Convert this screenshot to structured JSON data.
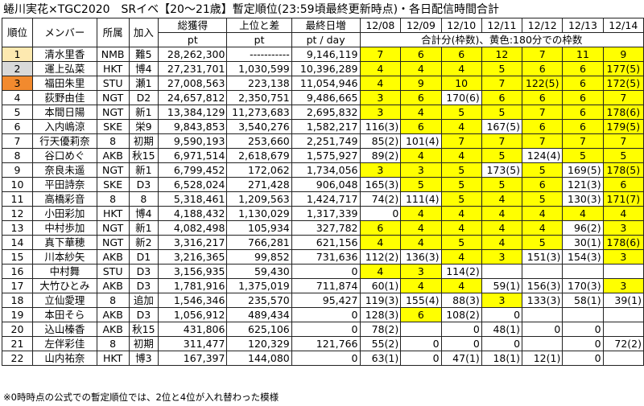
{
  "title": "蜷川実花×TGC2020　SRイベ【20～21歳】暫定順位(23:59頃最終更新時点)・各日配信時間合計",
  "note": "※0時時点の公式での暫定順位では、2位と4位が入れ替わった模様",
  "header": {
    "rank": "順位",
    "member": "メンバー",
    "group": "所属",
    "join": "加入",
    "total": "総獲得",
    "diff": "上位と差",
    "last": "最終日増",
    "total_unit": "pt",
    "diff_unit": "pt",
    "last_unit": "pt / day",
    "dates": [
      "12/08",
      "12/09",
      "12/10",
      "12/11",
      "12/12",
      "12/13",
      "12/14"
    ],
    "legend": "合計分(枠数)、黄色:180分での枠数"
  },
  "colors": {
    "highlight": "#ffff00",
    "rank1": "#fde9b0",
    "rank2": "#d9d9d9",
    "rank3": "#f28a2e"
  },
  "rows": [
    {
      "rank": "1",
      "member": "清水里香",
      "group": "NMB",
      "join": "難5",
      "total": "28,262,300",
      "diff": "-----------",
      "last": "9,146,119",
      "days": [
        {
          "v": "7",
          "y": true
        },
        {
          "v": "6",
          "y": true
        },
        {
          "v": "6",
          "y": true
        },
        {
          "v": "12",
          "y": true
        },
        {
          "v": "7",
          "y": true
        },
        {
          "v": "11",
          "y": true
        },
        {
          "v": "9",
          "y": true
        }
      ]
    },
    {
      "rank": "2",
      "member": "運上弘菜",
      "group": "HKT",
      "join": "博4",
      "total": "27,231,701",
      "diff": "1,030,599",
      "last": "10,396,289",
      "days": [
        {
          "v": "4",
          "y": true
        },
        {
          "v": "4",
          "y": true
        },
        {
          "v": "4",
          "y": true
        },
        {
          "v": "5",
          "y": true
        },
        {
          "v": "6",
          "y": true
        },
        {
          "v": "6",
          "y": true
        },
        {
          "v": "177(5)",
          "y": true
        }
      ]
    },
    {
      "rank": "3",
      "member": "福田朱里",
      "group": "STU",
      "join": "瀬1",
      "total": "27,008,563",
      "diff": "223,138",
      "last": "11,054,946",
      "days": [
        {
          "v": "4",
          "y": true
        },
        {
          "v": "9",
          "y": true
        },
        {
          "v": "10",
          "y": true
        },
        {
          "v": "7",
          "y": true
        },
        {
          "v": "122(5)",
          "y": true
        },
        {
          "v": "6",
          "y": true
        },
        {
          "v": "172(5)",
          "y": true
        }
      ]
    },
    {
      "rank": "4",
      "member": "荻野由佳",
      "group": "NGT",
      "join": "D2",
      "total": "24,657,812",
      "diff": "2,350,751",
      "last": "9,486,665",
      "days": [
        {
          "v": "3",
          "y": true
        },
        {
          "v": "6",
          "y": true
        },
        {
          "v": "170(6)",
          "y": false
        },
        {
          "v": "6",
          "y": true
        },
        {
          "v": "6",
          "y": true
        },
        {
          "v": "6",
          "y": true
        },
        {
          "v": "7",
          "y": true
        }
      ]
    },
    {
      "rank": "5",
      "member": "本間日陽",
      "group": "NGT",
      "join": "新1",
      "total": "13,384,129",
      "diff": "11,273,683",
      "last": "2,695,832",
      "days": [
        {
          "v": "3",
          "y": true
        },
        {
          "v": "4",
          "y": true
        },
        {
          "v": "5",
          "y": true
        },
        {
          "v": "5",
          "y": true
        },
        {
          "v": "7",
          "y": true
        },
        {
          "v": "6",
          "y": true
        },
        {
          "v": "178(6)",
          "y": true
        }
      ]
    },
    {
      "rank": "6",
      "member": "入内嶋涼",
      "group": "SKE",
      "join": "栄9",
      "total": "9,843,853",
      "diff": "3,540,276",
      "last": "1,582,217",
      "days": [
        {
          "v": "116(3)",
          "y": false
        },
        {
          "v": "6",
          "y": true
        },
        {
          "v": "4",
          "y": true
        },
        {
          "v": "167(5)",
          "y": false
        },
        {
          "v": "6",
          "y": true
        },
        {
          "v": "6",
          "y": true
        },
        {
          "v": "179(5)",
          "y": true
        }
      ]
    },
    {
      "rank": "7",
      "member": "行天優莉奈",
      "group": "8",
      "join": "初期",
      "total": "9,590,193",
      "diff": "253,660",
      "last": "2,251,749",
      "days": [
        {
          "v": "85(2)",
          "y": false
        },
        {
          "v": "101(4)",
          "y": false
        },
        {
          "v": "7",
          "y": true
        },
        {
          "v": "7",
          "y": true
        },
        {
          "v": "7",
          "y": true
        },
        {
          "v": "7",
          "y": true
        },
        {
          "v": "7",
          "y": true
        }
      ]
    },
    {
      "rank": "8",
      "member": "谷口めぐ",
      "group": "AKB",
      "join": "秋15",
      "total": "6,971,514",
      "diff": "2,618,679",
      "last": "1,575,927",
      "days": [
        {
          "v": "89(2)",
          "y": false
        },
        {
          "v": "4",
          "y": true
        },
        {
          "v": "4",
          "y": true
        },
        {
          "v": "5",
          "y": true
        },
        {
          "v": "124(4)",
          "y": false
        },
        {
          "v": "5",
          "y": true
        },
        {
          "v": "5",
          "y": true
        }
      ]
    },
    {
      "rank": "9",
      "member": "奈良未遥",
      "group": "NGT",
      "join": "新1",
      "total": "6,799,452",
      "diff": "172,062",
      "last": "1,734,056",
      "days": [
        {
          "v": "3",
          "y": true
        },
        {
          "v": "3",
          "y": true
        },
        {
          "v": "5",
          "y": true
        },
        {
          "v": "173(5)",
          "y": false
        },
        {
          "v": "5",
          "y": true
        },
        {
          "v": "169(5)",
          "y": false
        },
        {
          "v": "178(5)",
          "y": true
        }
      ]
    },
    {
      "rank": "10",
      "member": "平田詩奈",
      "group": "SKE",
      "join": "D3",
      "total": "6,528,024",
      "diff": "271,428",
      "last": "906,048",
      "days": [
        {
          "v": "165(3)",
          "y": false
        },
        {
          "v": "5",
          "y": true
        },
        {
          "v": "5",
          "y": true
        },
        {
          "v": "5",
          "y": true
        },
        {
          "v": "6",
          "y": true
        },
        {
          "v": "121(3)",
          "y": false
        },
        {
          "v": "6",
          "y": true
        }
      ]
    },
    {
      "rank": "11",
      "member": "高橋彩音",
      "group": "8",
      "join": "8",
      "total": "5,318,461",
      "diff": "1,209,563",
      "last": "1,424,717",
      "days": [
        {
          "v": "74(2)",
          "y": false
        },
        {
          "v": "111(4)",
          "y": false
        },
        {
          "v": "5",
          "y": true
        },
        {
          "v": "4",
          "y": true
        },
        {
          "v": "5",
          "y": true
        },
        {
          "v": "130(3)",
          "y": false
        },
        {
          "v": "171(7)",
          "y": true
        }
      ]
    },
    {
      "rank": "12",
      "member": "小田彩加",
      "group": "HKT",
      "join": "博4",
      "total": "4,188,432",
      "diff": "1,130,029",
      "last": "1,317,339",
      "days": [
        {
          "v": "0",
          "y": false
        },
        {
          "v": "4",
          "y": true
        },
        {
          "v": "4",
          "y": true
        },
        {
          "v": "4",
          "y": true
        },
        {
          "v": "4",
          "y": true
        },
        {
          "v": "4",
          "y": true
        },
        {
          "v": "4",
          "y": true
        }
      ]
    },
    {
      "rank": "13",
      "member": "中村歩加",
      "group": "NGT",
      "join": "新1",
      "total": "4,082,498",
      "diff": "105,934",
      "last": "327,782",
      "days": [
        {
          "v": "6",
          "y": true
        },
        {
          "v": "4",
          "y": true
        },
        {
          "v": "4",
          "y": true
        },
        {
          "v": "4",
          "y": true
        },
        {
          "v": "4",
          "y": true
        },
        {
          "v": "96(2)",
          "y": false
        },
        {
          "v": "3",
          "y": true
        }
      ]
    },
    {
      "rank": "14",
      "member": "真下華穂",
      "group": "NGT",
      "join": "新2",
      "total": "3,316,217",
      "diff": "766,281",
      "last": "621,156",
      "days": [
        {
          "v": "4",
          "y": true
        },
        {
          "v": "4",
          "y": true
        },
        {
          "v": "5",
          "y": true
        },
        {
          "v": "4",
          "y": true
        },
        {
          "v": "5",
          "y": true
        },
        {
          "v": "30(1)",
          "y": false
        },
        {
          "v": "178(6)",
          "y": true
        }
      ]
    },
    {
      "rank": "15",
      "member": "川本紗矢",
      "group": "AKB",
      "join": "D1",
      "total": "3,216,365",
      "diff": "99,852",
      "last": "731,636",
      "days": [
        {
          "v": "112(2)",
          "y": false
        },
        {
          "v": "136(3)",
          "y": false
        },
        {
          "v": "4",
          "y": true
        },
        {
          "v": "3",
          "y": true
        },
        {
          "v": "151(3)",
          "y": false
        },
        {
          "v": "154(3)",
          "y": false
        },
        {
          "v": "3",
          "y": true
        }
      ]
    },
    {
      "rank": "16",
      "member": "中村舞",
      "group": "STU",
      "join": "D3",
      "total": "3,156,935",
      "diff": "59,430",
      "last": "0",
      "days": [
        {
          "v": "4",
          "y": true
        },
        {
          "v": "3",
          "y": true
        },
        {
          "v": "114(2)",
          "y": false
        },
        {
          "v": "",
          "y": false
        },
        {
          "v": "",
          "y": false
        },
        {
          "v": "",
          "y": false
        },
        {
          "v": "",
          "y": false
        }
      ]
    },
    {
      "rank": "17",
      "member": "大竹ひとみ",
      "group": "AKB",
      "join": "D3",
      "total": "1,781,916",
      "diff": "1,375,019",
      "last": "711,874",
      "days": [
        {
          "v": "60(1)",
          "y": false
        },
        {
          "v": "4",
          "y": true
        },
        {
          "v": "4",
          "y": true
        },
        {
          "v": "59(1)",
          "y": false
        },
        {
          "v": "156(3)",
          "y": false
        },
        {
          "v": "170(3)",
          "y": false
        },
        {
          "v": "3",
          "y": true
        }
      ]
    },
    {
      "rank": "18",
      "member": "立仙愛理",
      "group": "8",
      "join": "追加",
      "total": "1,546,346",
      "diff": "235,570",
      "last": "95,427",
      "days": [
        {
          "v": "119(3)",
          "y": false
        },
        {
          "v": "155(4)",
          "y": false
        },
        {
          "v": "88(3)",
          "y": false
        },
        {
          "v": "3",
          "y": true
        },
        {
          "v": "133(3)",
          "y": false
        },
        {
          "v": "58(1)",
          "y": false
        },
        {
          "v": "39(1)",
          "y": false
        }
      ]
    },
    {
      "rank": "19",
      "member": "本田そら",
      "group": "AKB",
      "join": "D3",
      "total": "1,056,912",
      "diff": "489,434",
      "last": "0",
      "days": [
        {
          "v": "128(3)",
          "y": false
        },
        {
          "v": "6",
          "y": true
        },
        {
          "v": "108(2)",
          "y": false
        },
        {
          "v": "0",
          "y": false
        },
        {
          "v": "",
          "y": false
        },
        {
          "v": "",
          "y": false
        },
        {
          "v": "",
          "y": false
        }
      ]
    },
    {
      "rank": "20",
      "member": "込山榛香",
      "group": "AKB",
      "join": "秋15",
      "total": "431,806",
      "diff": "625,106",
      "last": "0",
      "days": [
        {
          "v": "78(2)",
          "y": false
        },
        {
          "v": "",
          "y": false
        },
        {
          "v": "0",
          "y": false
        },
        {
          "v": "48(1)",
          "y": false
        },
        {
          "v": "0",
          "y": false
        },
        {
          "v": "0",
          "y": false
        },
        {
          "v": "",
          "y": false
        }
      ]
    },
    {
      "rank": "21",
      "member": "左伴彩佳",
      "group": "8",
      "join": "初期",
      "total": "311,477",
      "diff": "120,329",
      "last": "121,766",
      "days": [
        {
          "v": "55(2)",
          "y": false
        },
        {
          "v": "0",
          "y": false
        },
        {
          "v": "0",
          "y": false
        },
        {
          "v": "0",
          "y": false
        },
        {
          "v": "",
          "y": false
        },
        {
          "v": "0",
          "y": false
        },
        {
          "v": "72(2)",
          "y": false
        }
      ]
    },
    {
      "rank": "22",
      "member": "山内祐奈",
      "group": "HKT",
      "join": "博3",
      "total": "167,397",
      "diff": "144,080",
      "last": "0",
      "days": [
        {
          "v": "63(1)",
          "y": false
        },
        {
          "v": "0",
          "y": false
        },
        {
          "v": "47(1)",
          "y": false
        },
        {
          "v": "18(1)",
          "y": false
        },
        {
          "v": "12(1)",
          "y": false
        },
        {
          "v": "0",
          "y": false
        },
        {
          "v": "",
          "y": false
        }
      ]
    }
  ]
}
